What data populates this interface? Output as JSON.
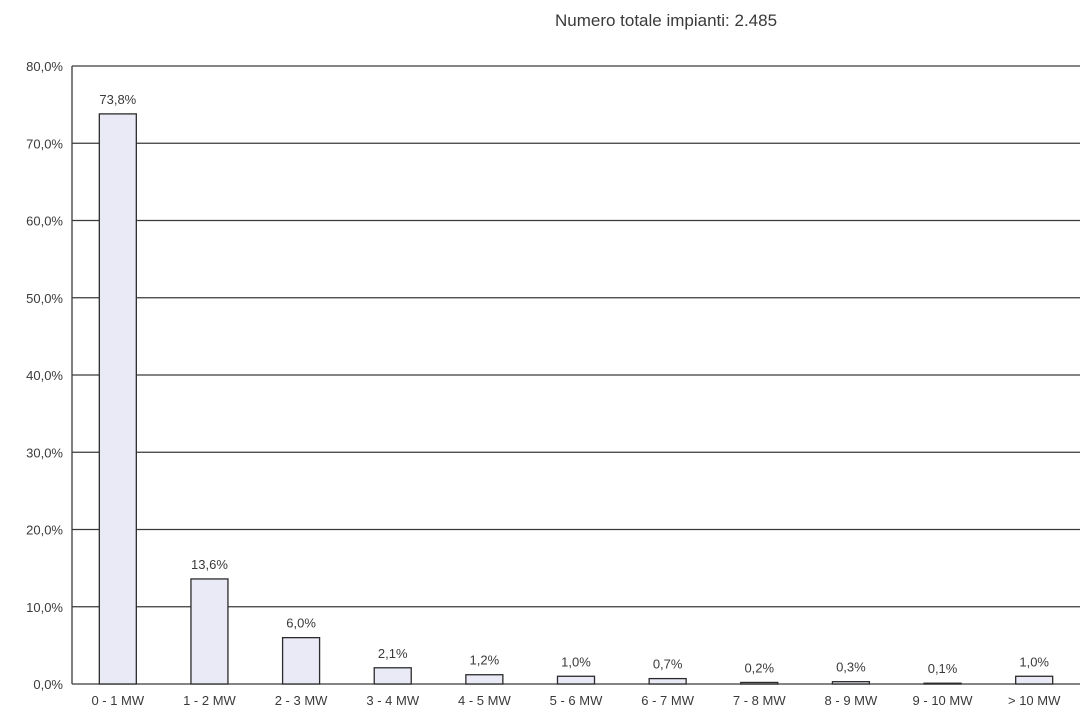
{
  "chart_data": {
    "type": "bar",
    "title": "Numero totale impianti: 2.485",
    "xlabel": "",
    "ylabel": "",
    "ylim": [
      0,
      80
    ],
    "y_ticks": [
      0,
      10,
      20,
      30,
      40,
      50,
      60,
      70,
      80
    ],
    "y_tick_labels": [
      "0,0%",
      "10,0%",
      "20,0%",
      "30,0%",
      "40,0%",
      "50,0%",
      "60,0%",
      "70,0%",
      "80,0%"
    ],
    "categories": [
      "0 - 1 MW",
      "1 - 2 MW",
      "2 - 3 MW",
      "3 - 4 MW",
      "4 - 5 MW",
      "5 - 6 MW",
      "6 - 7 MW",
      "7 - 8 MW",
      "8 - 9 MW",
      "9 - 10 MW",
      "> 10 MW"
    ],
    "values": [
      73.8,
      13.6,
      6.0,
      2.1,
      1.2,
      1.0,
      0.7,
      0.2,
      0.3,
      0.1,
      1.0
    ],
    "value_labels": [
      "73,8%",
      "13,6%",
      "6,0%",
      "2,1%",
      "1,2%",
      "1,0%",
      "0,7%",
      "0,2%",
      "0,3%",
      "0,1%",
      "1,0%"
    ],
    "grid": true,
    "legend": "none",
    "colors": {
      "bar_fill": "#e9eaf6",
      "bar_stroke": "#2b2b2b",
      "grid": "#3a3a3a",
      "text": "#3a3a3a"
    }
  }
}
